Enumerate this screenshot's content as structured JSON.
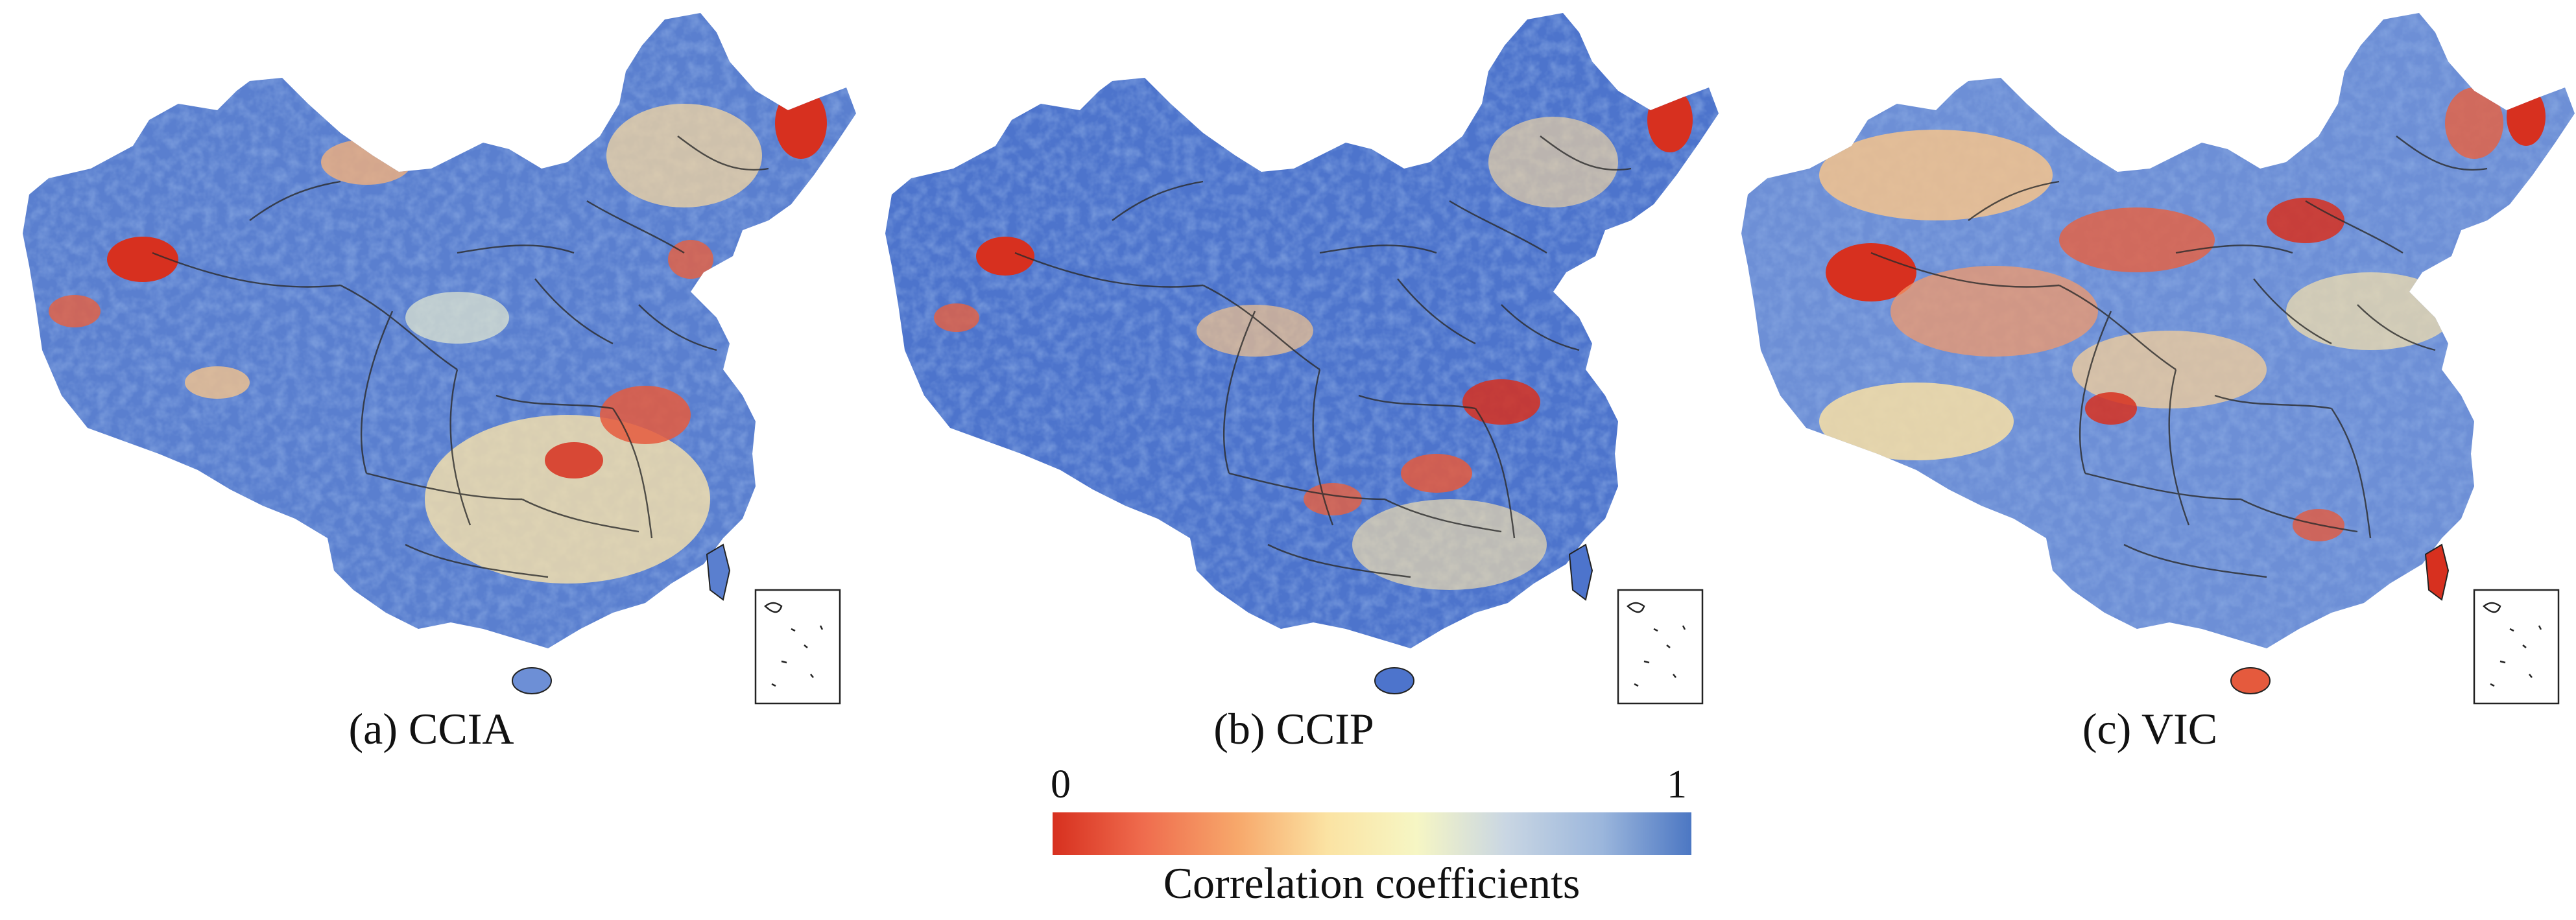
{
  "figure": {
    "panels": [
      {
        "label": "(a) CCIA",
        "model": "CCIA",
        "dominant_tone": "#5a7fcf"
      },
      {
        "label": "(b) CCIP",
        "model": "CCIP",
        "dominant_tone": "#4d74cc"
      },
      {
        "label": "(c) VIC",
        "model": "VIC",
        "dominant_tone": "#6d8fd6"
      }
    ],
    "inset": "South China Sea islands inset",
    "colorbar": {
      "min_label": "0",
      "max_label": "1",
      "title": "Correlation coefficients",
      "min_value": 0,
      "max_value": 1,
      "colors": [
        "#d7301f",
        "#ef6b4d",
        "#f7a86b",
        "#fbe3a3",
        "#f6f6c4",
        "#c9d6e3",
        "#9bb6dc",
        "#4c77c3"
      ]
    }
  }
}
